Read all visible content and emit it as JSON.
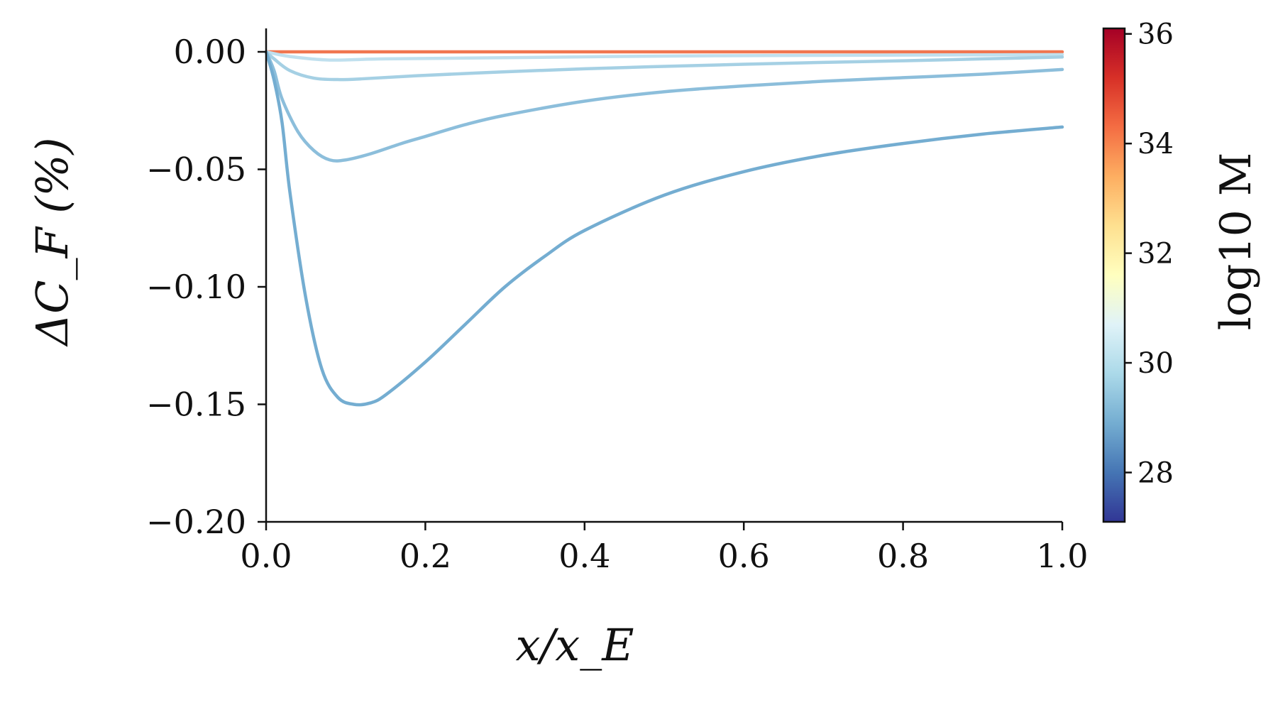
{
  "chart_data": {
    "type": "line",
    "xlabel": "x/x_E",
    "ylabel": "ΔC_F (%)",
    "xlim": [
      0.0,
      1.0
    ],
    "ylim": [
      -0.2,
      0.01
    ],
    "x_ticks": [
      "0.0",
      "0.2",
      "0.4",
      "0.6",
      "0.8",
      "1.0"
    ],
    "y_ticks": [
      "0.00",
      "−0.05",
      "−0.10",
      "−0.15",
      "−0.20"
    ],
    "grid": false,
    "colorbar": {
      "label": "log10 M",
      "range": [
        27.1,
        36.1
      ],
      "ticks": [
        "28",
        "30",
        "32",
        "34",
        "36"
      ],
      "colormap": [
        "#313695",
        "#4575b4",
        "#74add1",
        "#abd9e9",
        "#e0f3f8",
        "#ffffbf",
        "#fee090",
        "#fdae61",
        "#f46d43",
        "#d73027",
        "#a50026"
      ]
    },
    "series": [
      {
        "color": "#f07650",
        "points": [
          [
            0.0,
            0.0
          ],
          [
            0.2,
            0.0
          ],
          [
            0.4,
            0.0
          ],
          [
            0.6,
            0.0
          ],
          [
            0.8,
            0.0
          ],
          [
            1.0,
            0.0
          ]
        ]
      },
      {
        "color": "#c0e0ee",
        "points": [
          [
            0.0,
            0.0
          ],
          [
            0.03,
            -0.002
          ],
          [
            0.08,
            -0.0035
          ],
          [
            0.15,
            -0.003
          ],
          [
            0.3,
            -0.0025
          ],
          [
            0.5,
            -0.0018
          ],
          [
            0.7,
            -0.0015
          ],
          [
            1.0,
            -0.0012
          ]
        ]
      },
      {
        "color": "#a5d0e4",
        "points": [
          [
            0.0,
            0.0
          ],
          [
            0.01,
            -0.003
          ],
          [
            0.03,
            -0.008
          ],
          [
            0.06,
            -0.0112
          ],
          [
            0.09,
            -0.0118
          ],
          [
            0.12,
            -0.0115
          ],
          [
            0.2,
            -0.01
          ],
          [
            0.3,
            -0.0085
          ],
          [
            0.4,
            -0.0072
          ],
          [
            0.5,
            -0.0062
          ],
          [
            0.6,
            -0.0053
          ],
          [
            0.7,
            -0.0045
          ],
          [
            0.8,
            -0.0038
          ],
          [
            0.9,
            -0.003
          ],
          [
            1.0,
            -0.0022
          ]
        ]
      },
      {
        "color": "#8cbedb",
        "points": [
          [
            0.0,
            0.0
          ],
          [
            0.01,
            -0.008
          ],
          [
            0.02,
            -0.02
          ],
          [
            0.04,
            -0.034
          ],
          [
            0.06,
            -0.042
          ],
          [
            0.08,
            -0.046
          ],
          [
            0.1,
            -0.046
          ],
          [
            0.13,
            -0.0435
          ],
          [
            0.17,
            -0.039
          ],
          [
            0.2,
            -0.036
          ],
          [
            0.25,
            -0.031
          ],
          [
            0.3,
            -0.027
          ],
          [
            0.4,
            -0.021
          ],
          [
            0.5,
            -0.017
          ],
          [
            0.6,
            -0.0145
          ],
          [
            0.7,
            -0.0125
          ],
          [
            0.8,
            -0.011
          ],
          [
            0.9,
            -0.0095
          ],
          [
            1.0,
            -0.0075
          ]
        ]
      },
      {
        "color": "#74add1",
        "points": [
          [
            0.0,
            0.0
          ],
          [
            0.01,
            -0.012
          ],
          [
            0.02,
            -0.03
          ],
          [
            0.03,
            -0.06
          ],
          [
            0.05,
            -0.105
          ],
          [
            0.07,
            -0.135
          ],
          [
            0.09,
            -0.147
          ],
          [
            0.11,
            -0.15
          ],
          [
            0.13,
            -0.1495
          ],
          [
            0.15,
            -0.146
          ],
          [
            0.2,
            -0.132
          ],
          [
            0.25,
            -0.116
          ],
          [
            0.3,
            -0.1
          ],
          [
            0.35,
            -0.087
          ],
          [
            0.4,
            -0.076
          ],
          [
            0.5,
            -0.061
          ],
          [
            0.6,
            -0.051
          ],
          [
            0.7,
            -0.044
          ],
          [
            0.8,
            -0.039
          ],
          [
            0.9,
            -0.035
          ],
          [
            1.0,
            -0.032
          ]
        ]
      }
    ]
  }
}
